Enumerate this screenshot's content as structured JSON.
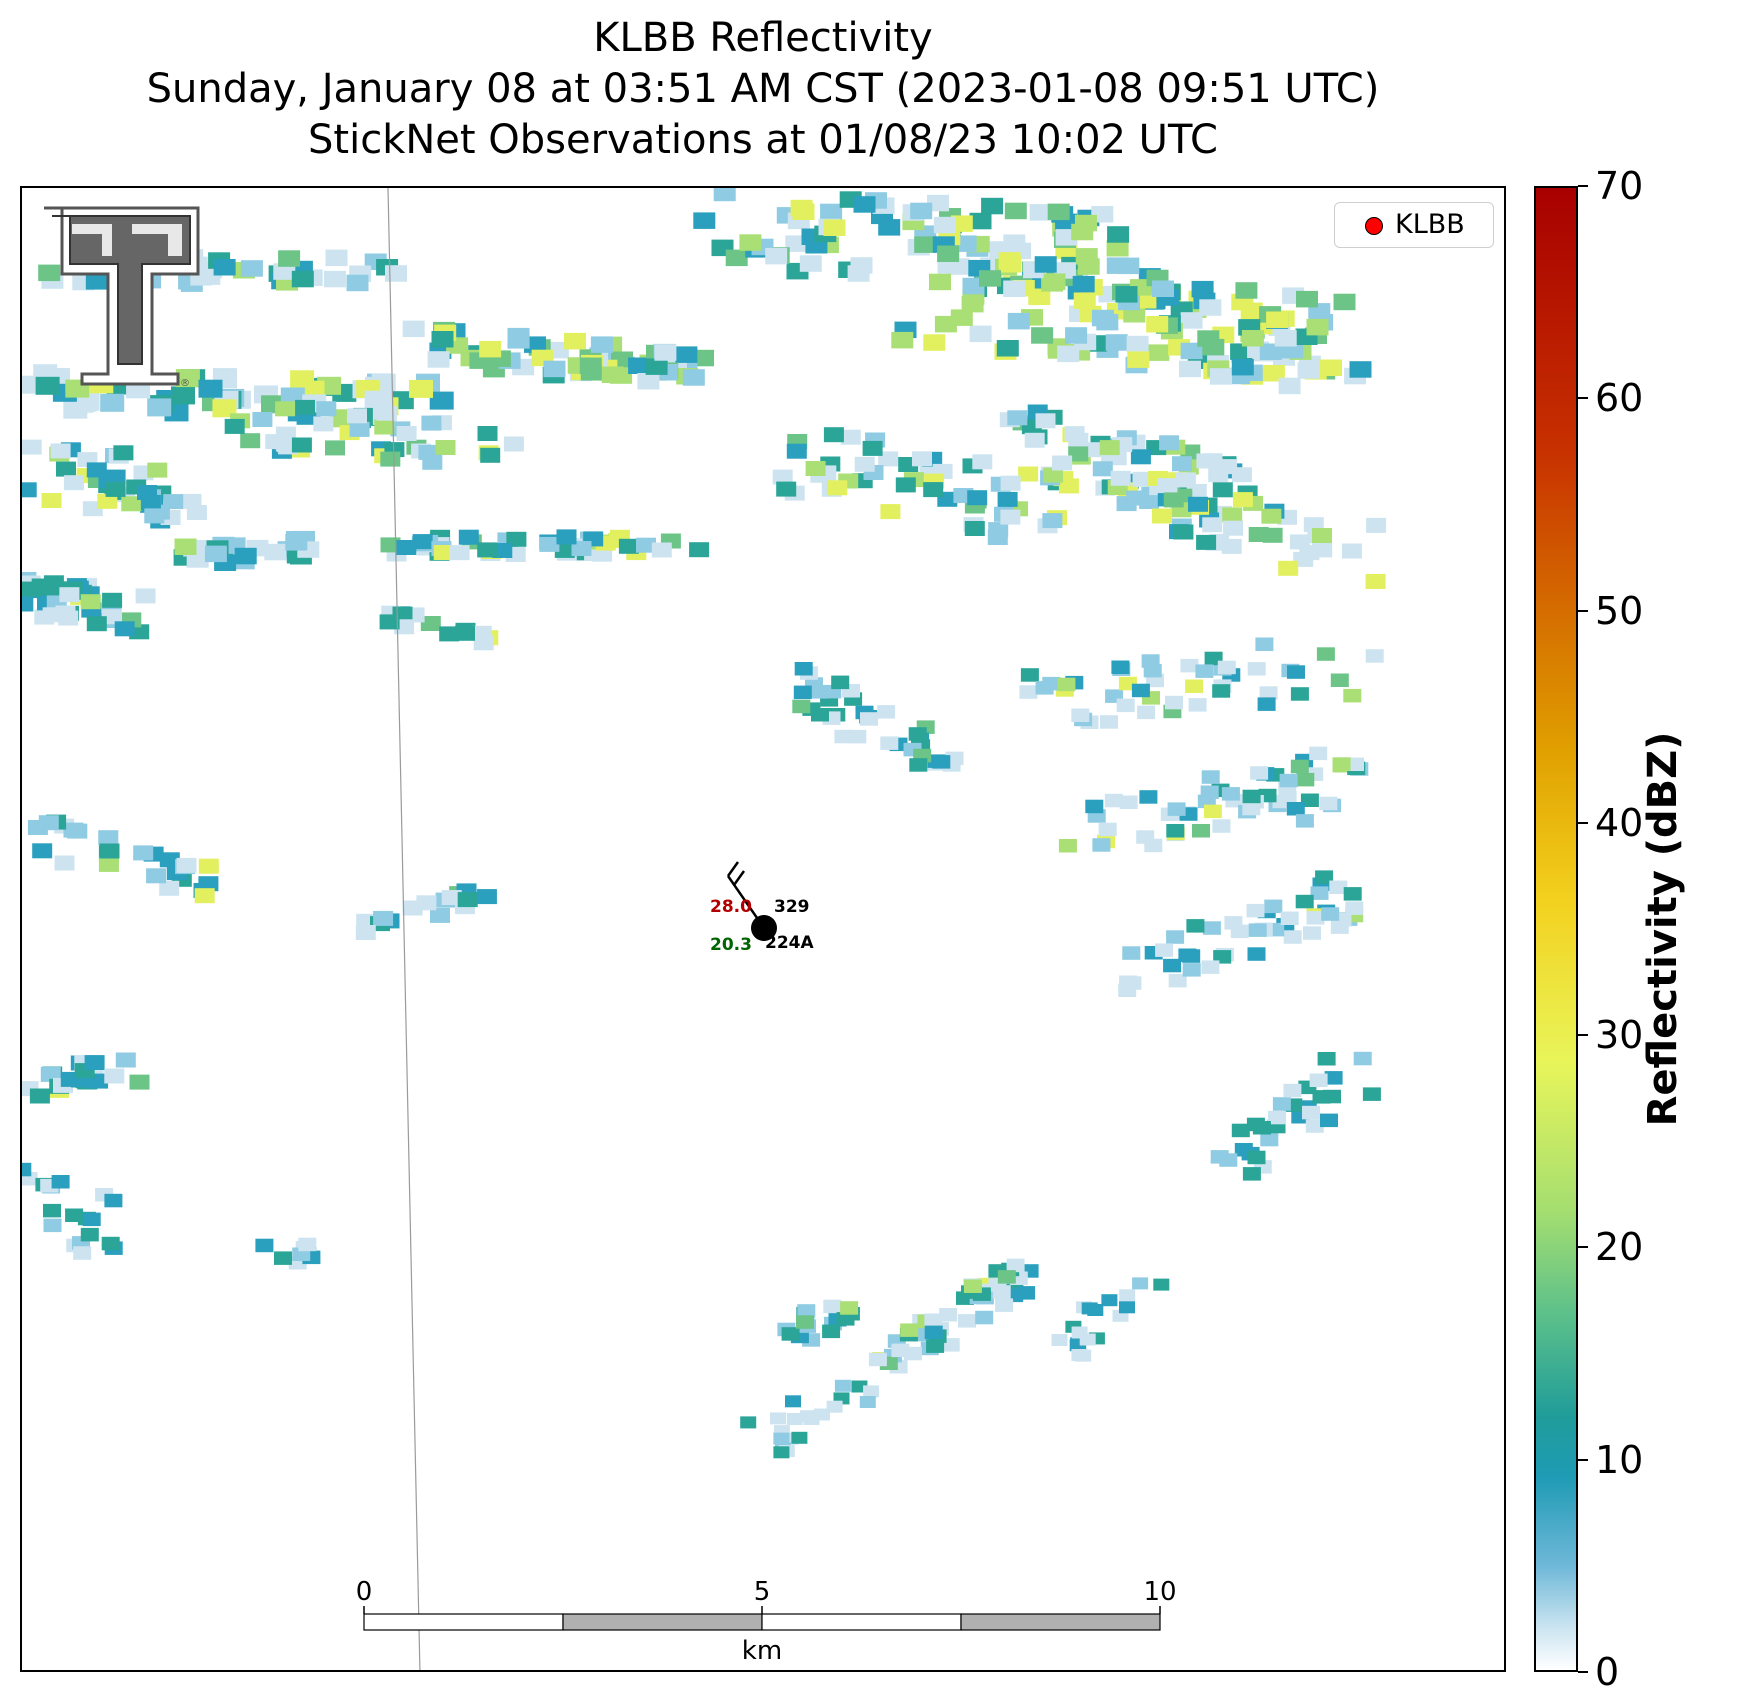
{
  "title": {
    "line1": "KLBB Reflectivity",
    "line2": "Sunday, January 08 at 03:51 AM CST (2023-01-08 09:51 UTC)",
    "line3": "StickNet Observations at 01/08/23 10:02 UTC"
  },
  "legend": {
    "label": "KLBB",
    "marker_color": "#ff0000"
  },
  "station": {
    "id": "224A",
    "temperature": "28.0",
    "dewpoint": "20.3",
    "pressure": "329",
    "temperature_color": "#b20000",
    "dewpoint_color": "#006400"
  },
  "scale_bar": {
    "ticks": [
      "0",
      "5",
      "10"
    ],
    "unit": "km"
  },
  "colorbar": {
    "label": "Reflectivity (dBZ)",
    "ticks": [
      "0",
      "10",
      "20",
      "30",
      "40",
      "50",
      "60",
      "70"
    ],
    "range": [
      0,
      70
    ]
  },
  "colors": {
    "light": "#cde4f0",
    "sky": "#8fcbe2",
    "teal": "#2a9fbe",
    "teal_green": "#2aa597",
    "green": "#6cc487",
    "light_green": "#a9df74",
    "yellow": "#e2f05f"
  },
  "logo": "texas-tech-double-t-logo"
}
